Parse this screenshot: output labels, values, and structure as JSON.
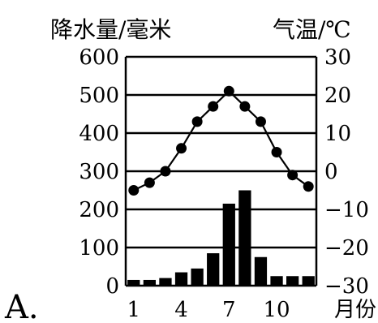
{
  "chart_data": {
    "type": "bar",
    "panel_label": "A.",
    "left_axis_title": "降水量/毫米",
    "right_axis_title": "气温/℃",
    "x_unit": "月份",
    "months": [
      1,
      2,
      3,
      4,
      5,
      6,
      7,
      8,
      9,
      10,
      11,
      12
    ],
    "x_tick_labels": [
      "1",
      "4",
      "7",
      "10"
    ],
    "x_tick_months": [
      1,
      4,
      7,
      10
    ],
    "precipitation": {
      "name": "降水量",
      "values": [
        15,
        15,
        20,
        35,
        45,
        85,
        215,
        250,
        75,
        25,
        25,
        25
      ],
      "ylim": [
        0,
        600
      ],
      "ticks": [
        0,
        100,
        200,
        300,
        400,
        500,
        600
      ]
    },
    "temperature": {
      "name": "气温",
      "values": [
        -5,
        -3,
        0,
        6,
        13,
        17,
        21,
        17,
        13,
        5,
        -1,
        -4
      ],
      "ylim": [
        -30,
        30
      ],
      "ticks": [
        -30,
        -20,
        -10,
        0,
        10,
        20,
        30
      ],
      "tick_labels": [
        "−30",
        "−20",
        "−10",
        "0",
        "10",
        "20",
        "30"
      ]
    },
    "colors": {
      "bars": "#000000",
      "line": "#000000",
      "markers": "#000000",
      "grid": "#000000",
      "background": "#ffffff"
    }
  }
}
